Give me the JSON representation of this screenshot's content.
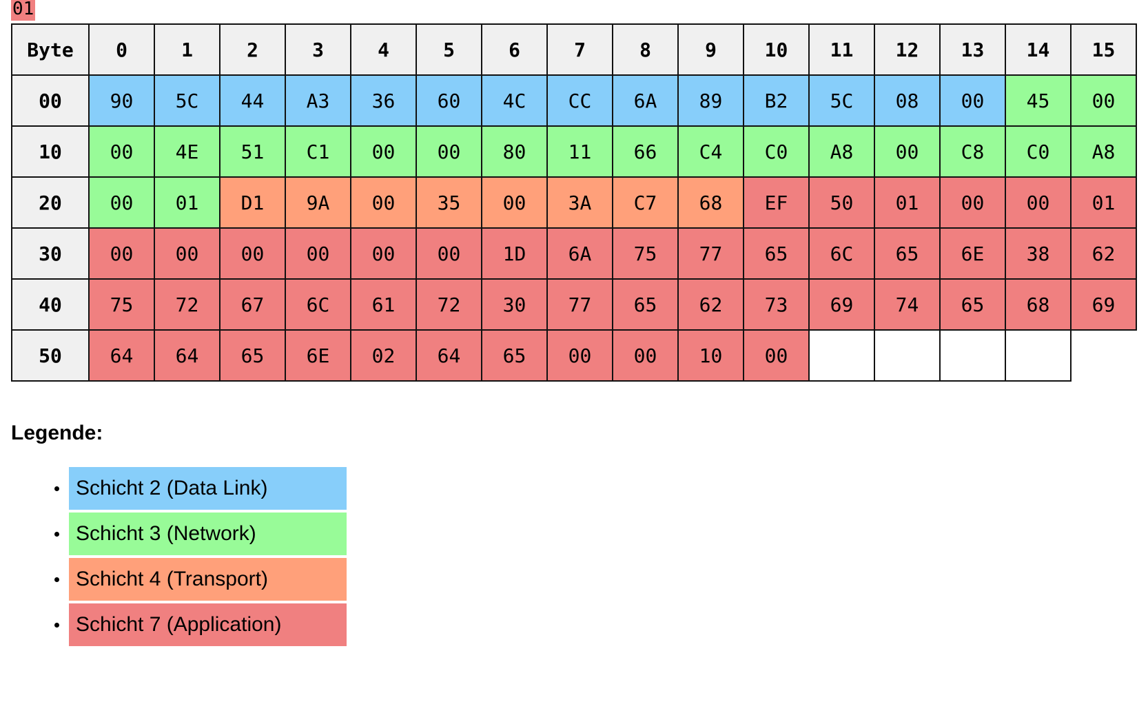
{
  "stray_byte": {
    "value": "01"
  },
  "colors": {
    "header": "#f0f0f0",
    "L2": "#87cefa",
    "L3": "#98fb98",
    "L4": "#ffa07a",
    "L7": "#f08080",
    "empty": "#ffffff"
  },
  "table": {
    "corner": "Byte",
    "columns": [
      "0",
      "1",
      "2",
      "3",
      "4",
      "5",
      "6",
      "7",
      "8",
      "9",
      "10",
      "11",
      "12",
      "13",
      "14",
      "15"
    ],
    "rows": [
      {
        "offset": "00",
        "cells": [
          {
            "v": "90",
            "l": "L2"
          },
          {
            "v": "5C",
            "l": "L2"
          },
          {
            "v": "44",
            "l": "L2"
          },
          {
            "v": "A3",
            "l": "L2"
          },
          {
            "v": "36",
            "l": "L2"
          },
          {
            "v": "60",
            "l": "L2"
          },
          {
            "v": "4C",
            "l": "L2"
          },
          {
            "v": "CC",
            "l": "L2"
          },
          {
            "v": "6A",
            "l": "L2"
          },
          {
            "v": "89",
            "l": "L2"
          },
          {
            "v": "B2",
            "l": "L2"
          },
          {
            "v": "5C",
            "l": "L2"
          },
          {
            "v": "08",
            "l": "L2"
          },
          {
            "v": "00",
            "l": "L2"
          },
          {
            "v": "45",
            "l": "L3"
          },
          {
            "v": "00",
            "l": "L3"
          }
        ]
      },
      {
        "offset": "10",
        "cells": [
          {
            "v": "00",
            "l": "L3"
          },
          {
            "v": "4E",
            "l": "L3"
          },
          {
            "v": "51",
            "l": "L3"
          },
          {
            "v": "C1",
            "l": "L3"
          },
          {
            "v": "00",
            "l": "L3"
          },
          {
            "v": "00",
            "l": "L3"
          },
          {
            "v": "80",
            "l": "L3"
          },
          {
            "v": "11",
            "l": "L3"
          },
          {
            "v": "66",
            "l": "L3"
          },
          {
            "v": "C4",
            "l": "L3"
          },
          {
            "v": "C0",
            "l": "L3"
          },
          {
            "v": "A8",
            "l": "L3"
          },
          {
            "v": "00",
            "l": "L3"
          },
          {
            "v": "C8",
            "l": "L3"
          },
          {
            "v": "C0",
            "l": "L3"
          },
          {
            "v": "A8",
            "l": "L3"
          }
        ]
      },
      {
        "offset": "20",
        "cells": [
          {
            "v": "00",
            "l": "L3"
          },
          {
            "v": "01",
            "l": "L3"
          },
          {
            "v": "D1",
            "l": "L4"
          },
          {
            "v": "9A",
            "l": "L4"
          },
          {
            "v": "00",
            "l": "L4"
          },
          {
            "v": "35",
            "l": "L4"
          },
          {
            "v": "00",
            "l": "L4"
          },
          {
            "v": "3A",
            "l": "L4"
          },
          {
            "v": "C7",
            "l": "L4"
          },
          {
            "v": "68",
            "l": "L4"
          },
          {
            "v": "EF",
            "l": "L7"
          },
          {
            "v": "50",
            "l": "L7"
          },
          {
            "v": "01",
            "l": "L7"
          },
          {
            "v": "00",
            "l": "L7"
          },
          {
            "v": "00",
            "l": "L7"
          },
          {
            "v": "01",
            "l": "L7"
          }
        ]
      },
      {
        "offset": "30",
        "cells": [
          {
            "v": "00",
            "l": "L7"
          },
          {
            "v": "00",
            "l": "L7"
          },
          {
            "v": "00",
            "l": "L7"
          },
          {
            "v": "00",
            "l": "L7"
          },
          {
            "v": "00",
            "l": "L7"
          },
          {
            "v": "00",
            "l": "L7"
          },
          {
            "v": "1D",
            "l": "L7"
          },
          {
            "v": "6A",
            "l": "L7"
          },
          {
            "v": "75",
            "l": "L7"
          },
          {
            "v": "77",
            "l": "L7"
          },
          {
            "v": "65",
            "l": "L7"
          },
          {
            "v": "6C",
            "l": "L7"
          },
          {
            "v": "65",
            "l": "L7"
          },
          {
            "v": "6E",
            "l": "L7"
          },
          {
            "v": "38",
            "l": "L7"
          },
          {
            "v": "62",
            "l": "L7"
          }
        ]
      },
      {
        "offset": "40",
        "cells": [
          {
            "v": "75",
            "l": "L7"
          },
          {
            "v": "72",
            "l": "L7"
          },
          {
            "v": "67",
            "l": "L7"
          },
          {
            "v": "6C",
            "l": "L7"
          },
          {
            "v": "61",
            "l": "L7"
          },
          {
            "v": "72",
            "l": "L7"
          },
          {
            "v": "30",
            "l": "L7"
          },
          {
            "v": "77",
            "l": "L7"
          },
          {
            "v": "65",
            "l": "L7"
          },
          {
            "v": "62",
            "l": "L7"
          },
          {
            "v": "73",
            "l": "L7"
          },
          {
            "v": "69",
            "l": "L7"
          },
          {
            "v": "74",
            "l": "L7"
          },
          {
            "v": "65",
            "l": "L7"
          },
          {
            "v": "68",
            "l": "L7"
          },
          {
            "v": "69",
            "l": "L7"
          }
        ]
      },
      {
        "offset": "50",
        "cells": [
          {
            "v": "64",
            "l": "L7"
          },
          {
            "v": "64",
            "l": "L7"
          },
          {
            "v": "65",
            "l": "L7"
          },
          {
            "v": "6E",
            "l": "L7"
          },
          {
            "v": "02",
            "l": "L7"
          },
          {
            "v": "64",
            "l": "L7"
          },
          {
            "v": "65",
            "l": "L7"
          },
          {
            "v": "00",
            "l": "L7"
          },
          {
            "v": "00",
            "l": "L7"
          },
          {
            "v": "10",
            "l": "L7"
          },
          {
            "v": "00",
            "l": "L7"
          },
          {
            "v": "",
            "l": "empty"
          },
          {
            "v": "",
            "l": "empty"
          },
          {
            "v": "",
            "l": "empty"
          },
          {
            "v": "",
            "l": "empty"
          },
          {
            "v": "",
            "l": "gap"
          }
        ]
      }
    ]
  },
  "legend": {
    "title": "Legende:",
    "items": [
      {
        "label": "Schicht 2 (Data Link)",
        "layer": "L2"
      },
      {
        "label": "Schicht 3 (Network)",
        "layer": "L3"
      },
      {
        "label": "Schicht 4 (Transport)",
        "layer": "L4"
      },
      {
        "label": "Schicht 7 (Application)",
        "layer": "L7"
      }
    ]
  }
}
